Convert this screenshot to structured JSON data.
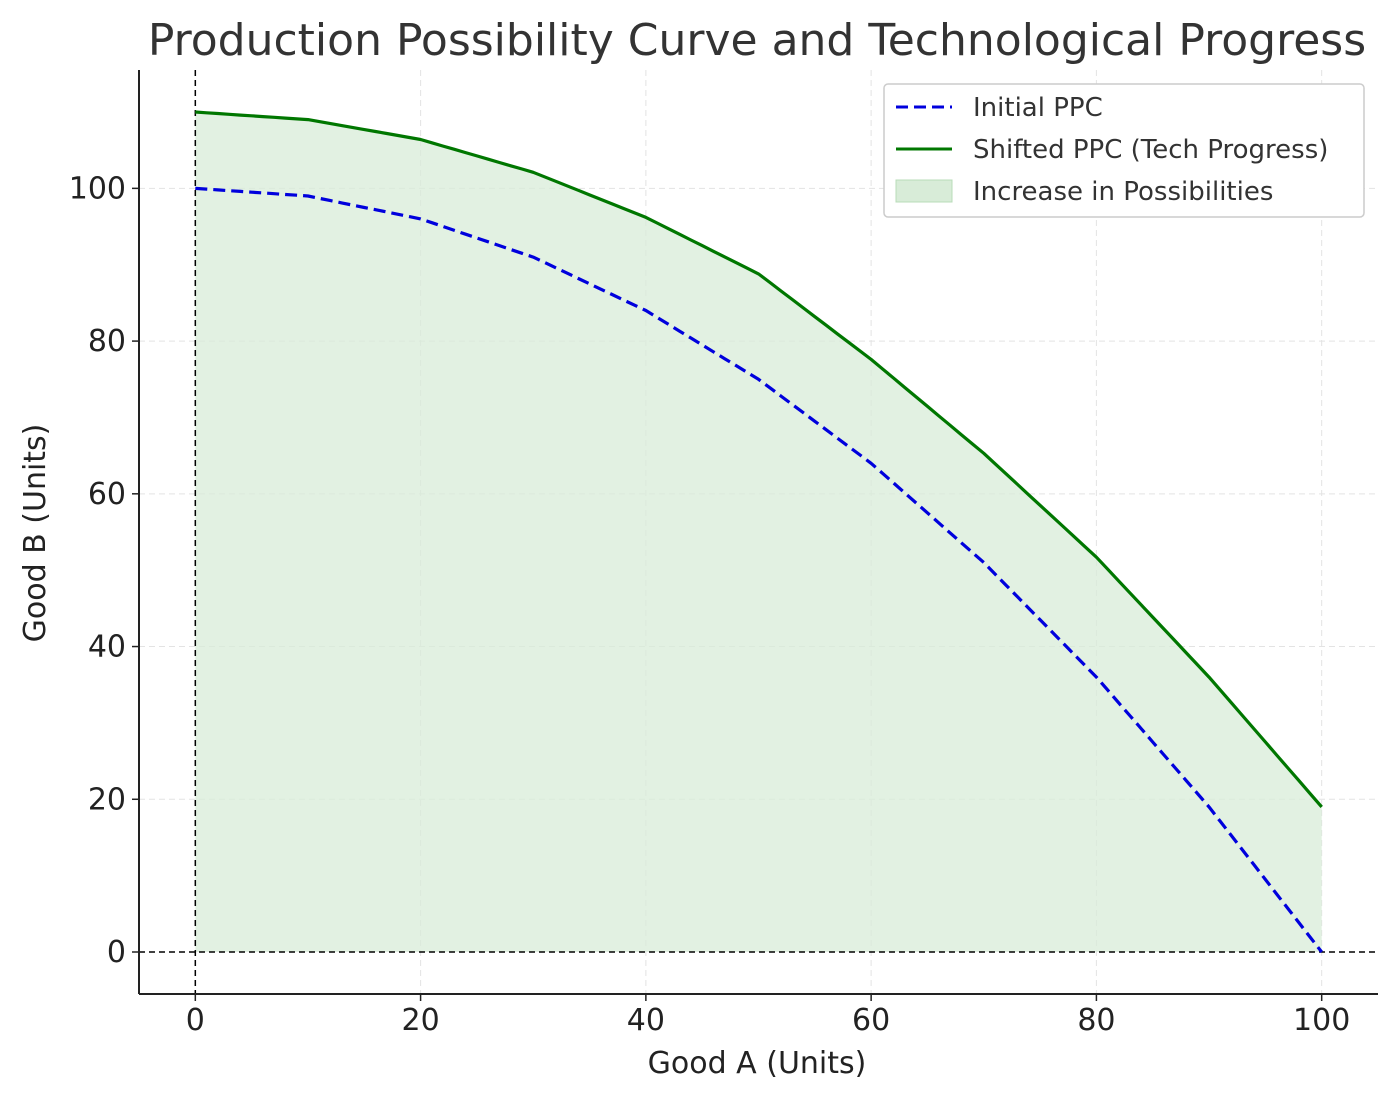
{
  "chart_data": {
    "type": "line",
    "title": "Production Possibility Curve and Technological Progress",
    "xlabel": "Good A (Units)",
    "ylabel": "Good B (Units)",
    "xlim": [
      -5,
      105
    ],
    "ylim": [
      -5.5,
      115.5
    ],
    "xticks": [
      0,
      20,
      40,
      60,
      80,
      100
    ],
    "yticks": [
      0,
      20,
      40,
      60,
      80,
      100
    ],
    "x_tick_labels": [
      "0",
      "20",
      "40",
      "60",
      "80",
      "100"
    ],
    "y_tick_labels": [
      "0",
      "20",
      "40",
      "60",
      "80",
      "100"
    ],
    "grid": true,
    "legend_position": "top-right",
    "reference_lines": [
      {
        "orientation": "horizontal",
        "value": 0,
        "style": "dashed",
        "color": "#000000"
      },
      {
        "orientation": "vertical",
        "value": 0,
        "style": "dashed",
        "color": "#000000"
      }
    ],
    "x": [
      0,
      10,
      20,
      30,
      40,
      50,
      60,
      70,
      80,
      90,
      100
    ],
    "series": [
      {
        "name": "Initial PPC",
        "color": "#0000dd",
        "style": "dashed",
        "values": [
          100,
          99,
          96,
          91,
          84,
          75,
          64,
          51,
          36,
          19,
          0
        ]
      },
      {
        "name": "Shifted PPC (Tech Progress)",
        "color": "#007700",
        "style": "solid",
        "values": [
          110,
          109,
          106.4,
          102.1,
          96.2,
          88.8,
          77.6,
          65.3,
          51.7,
          36.0,
          19.0
        ]
      }
    ],
    "fill": {
      "name": "Increase in Possibilities",
      "color": "#d8ecd8",
      "from": "zero",
      "to_series": "Shifted PPC (Tech Progress)"
    }
  }
}
